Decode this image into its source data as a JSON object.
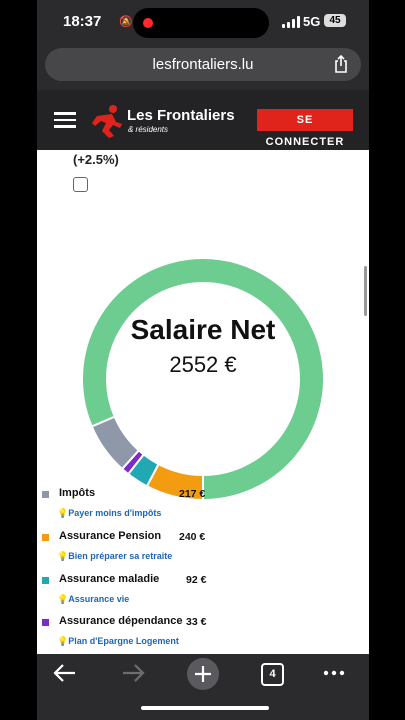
{
  "status": {
    "time": "18:37",
    "network": "5G",
    "battery": "45"
  },
  "browser": {
    "url": "lesfrontaliers.lu",
    "tab_count": "4"
  },
  "header": {
    "logo_main": "Les Frontaliers",
    "logo_sub": "& résidents",
    "connect_label": "SE CONNECTER"
  },
  "page": {
    "percent": "(+2.5%)"
  },
  "chart_data": {
    "type": "pie",
    "donut": true,
    "center_title": "Salaire Net",
    "center_value": "2552 €",
    "slices": [
      {
        "name": "Salaire Net",
        "value": 2552,
        "color": "#6dcc8f"
      },
      {
        "name": "Impôts",
        "value": 217,
        "color": "#8e98a9"
      },
      {
        "name": "Assurance dépendance",
        "value": 33,
        "color": "#7d2bc7"
      },
      {
        "name": "Assurance maladie",
        "value": 92,
        "color": "#21a8b3"
      },
      {
        "name": "Assurance Pension",
        "value": 240,
        "color": "#f39c12"
      }
    ]
  },
  "legend": [
    {
      "label": "Impôts",
      "amount": "217 €",
      "color": "#8e98a9",
      "tip": "Payer moins d'impôts"
    },
    {
      "label": "Assurance Pension",
      "amount": "240 €",
      "color": "#f39c12",
      "tip": "Bien préparer sa retraite"
    },
    {
      "label": "Assurance maladie",
      "amount": "92 €",
      "color": "#21a8b3",
      "tip": "Assurance vie"
    },
    {
      "label": "Assurance dépendance",
      "amount": "33 €",
      "color": "#7d2bc7",
      "tip": "Plan d'Epargne Logement"
    }
  ]
}
